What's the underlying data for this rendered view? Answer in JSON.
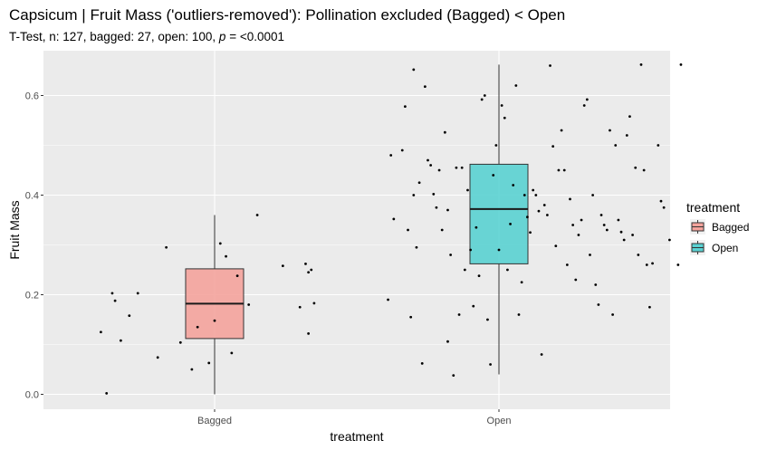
{
  "chart_data": {
    "type": "boxplot",
    "title": "Capsicum | Fruit Mass ('outliers-removed'): Pollination excluded (Bagged) < Open",
    "subtitle_prefix": "T-Test, n: 127, bagged: 27, open: 100, ",
    "subtitle_p": "p",
    "subtitle_suffix": " = <0.0001",
    "xlabel": "treatment",
    "ylabel": "Fruit Mass",
    "ylim": [
      -0.03,
      0.69
    ],
    "yticks": [
      0.0,
      0.2,
      0.4,
      0.6
    ],
    "ytick_labels": [
      "0.0",
      "0.2",
      "0.4",
      "0.6"
    ],
    "categories": [
      "Bagged",
      "Open"
    ],
    "legend": {
      "title": "treatment",
      "placement": "right",
      "entries": [
        "Bagged",
        "Open"
      ]
    },
    "colors": {
      "Bagged": "#f4a39c",
      "Open": "#5ad1d2",
      "panel": "#ebebeb",
      "grid": "#ffffff"
    },
    "boxes": [
      {
        "name": "Bagged",
        "min": 0.0,
        "q1": 0.112,
        "median": 0.182,
        "q3": 0.252,
        "max": 0.36
      },
      {
        "name": "Open",
        "min": 0.04,
        "q1": 0.262,
        "median": 0.372,
        "q3": 0.462,
        "max": 0.662
      }
    ],
    "points": {
      "Bagged": [
        [
          0.62,
          0.002
        ],
        [
          0.6,
          0.125
        ],
        [
          0.67,
          0.108
        ],
        [
          0.65,
          0.188
        ],
        [
          0.64,
          0.203
        ],
        [
          0.73,
          0.203
        ],
        [
          0.7,
          0.158
        ],
        [
          0.8,
          0.074
        ],
        [
          0.83,
          0.295
        ],
        [
          0.88,
          0.104
        ],
        [
          0.92,
          0.05
        ],
        [
          0.94,
          0.135
        ],
        [
          0.98,
          0.063
        ],
        [
          1.0,
          0.148
        ],
        [
          1.02,
          0.303
        ],
        [
          1.04,
          0.277
        ],
        [
          1.06,
          0.083
        ],
        [
          1.08,
          0.238
        ],
        [
          1.12,
          0.18
        ],
        [
          1.15,
          0.36
        ],
        [
          1.24,
          0.258
        ],
        [
          1.3,
          0.175
        ],
        [
          1.32,
          0.262
        ],
        [
          1.33,
          0.245
        ],
        [
          1.35,
          0.183
        ],
        [
          1.33,
          0.122
        ],
        [
          1.34,
          0.25
        ]
      ],
      "Open": [
        [
          1.61,
          0.19
        ],
        [
          1.62,
          0.48
        ],
        [
          1.63,
          0.352
        ],
        [
          1.66,
          0.49
        ],
        [
          1.67,
          0.578
        ],
        [
          1.68,
          0.33
        ],
        [
          1.69,
          0.155
        ],
        [
          1.7,
          0.652
        ],
        [
          1.7,
          0.4
        ],
        [
          1.71,
          0.295
        ],
        [
          1.72,
          0.425
        ],
        [
          1.73,
          0.062
        ],
        [
          1.74,
          0.618
        ],
        [
          1.75,
          0.47
        ],
        [
          1.76,
          0.46
        ],
        [
          1.77,
          0.402
        ],
        [
          1.78,
          0.375
        ],
        [
          1.79,
          0.45
        ],
        [
          1.8,
          0.33
        ],
        [
          1.81,
          0.526
        ],
        [
          1.82,
          0.106
        ],
        [
          1.82,
          0.37
        ],
        [
          1.83,
          0.28
        ],
        [
          1.84,
          0.038
        ],
        [
          1.85,
          0.455
        ],
        [
          1.86,
          0.16
        ],
        [
          1.87,
          0.455
        ],
        [
          1.88,
          0.25
        ],
        [
          1.89,
          0.41
        ],
        [
          1.9,
          0.29
        ],
        [
          1.91,
          0.177
        ],
        [
          1.92,
          0.335
        ],
        [
          1.93,
          0.238
        ],
        [
          1.94,
          0.592
        ],
        [
          1.95,
          0.6
        ],
        [
          1.96,
          0.15
        ],
        [
          1.97,
          0.06
        ],
        [
          1.98,
          0.44
        ],
        [
          1.99,
          0.5
        ],
        [
          2.0,
          0.29
        ],
        [
          2.01,
          0.58
        ],
        [
          2.02,
          0.555
        ],
        [
          2.03,
          0.25
        ],
        [
          2.04,
          0.342
        ],
        [
          2.05,
          0.42
        ],
        [
          2.06,
          0.62
        ],
        [
          2.07,
          0.16
        ],
        [
          2.08,
          0.225
        ],
        [
          2.09,
          0.4
        ],
        [
          2.1,
          0.356
        ],
        [
          2.11,
          0.325
        ],
        [
          2.12,
          0.41
        ],
        [
          2.13,
          0.4
        ],
        [
          2.14,
          0.368
        ],
        [
          2.15,
          0.08
        ],
        [
          2.16,
          0.38
        ],
        [
          2.17,
          0.36
        ],
        [
          2.18,
          0.66
        ],
        [
          2.19,
          0.498
        ],
        [
          2.2,
          0.298
        ],
        [
          2.21,
          0.45
        ],
        [
          2.22,
          0.53
        ],
        [
          2.23,
          0.45
        ],
        [
          2.24,
          0.26
        ],
        [
          2.25,
          0.392
        ],
        [
          2.26,
          0.34
        ],
        [
          2.27,
          0.23
        ],
        [
          2.28,
          0.32
        ],
        [
          2.29,
          0.35
        ],
        [
          2.3,
          0.58
        ],
        [
          2.31,
          0.592
        ],
        [
          2.32,
          0.28
        ],
        [
          2.33,
          0.4
        ],
        [
          2.34,
          0.22
        ],
        [
          2.35,
          0.18
        ],
        [
          2.36,
          0.36
        ],
        [
          2.37,
          0.34
        ],
        [
          2.38,
          0.33
        ],
        [
          2.39,
          0.53
        ],
        [
          2.4,
          0.16
        ],
        [
          2.41,
          0.5
        ],
        [
          2.42,
          0.35
        ],
        [
          2.43,
          0.326
        ],
        [
          2.44,
          0.31
        ],
        [
          2.45,
          0.52
        ],
        [
          2.46,
          0.558
        ],
        [
          2.47,
          0.32
        ],
        [
          2.48,
          0.455
        ],
        [
          2.49,
          0.28
        ],
        [
          2.5,
          0.662
        ],
        [
          2.51,
          0.45
        ],
        [
          2.52,
          0.26
        ],
        [
          2.53,
          0.175
        ],
        [
          2.54,
          0.263
        ],
        [
          2.56,
          0.5
        ],
        [
          2.57,
          0.388
        ],
        [
          2.58,
          0.375
        ],
        [
          2.6,
          0.31
        ],
        [
          2.63,
          0.26
        ],
        [
          2.64,
          0.662
        ]
      ]
    }
  }
}
